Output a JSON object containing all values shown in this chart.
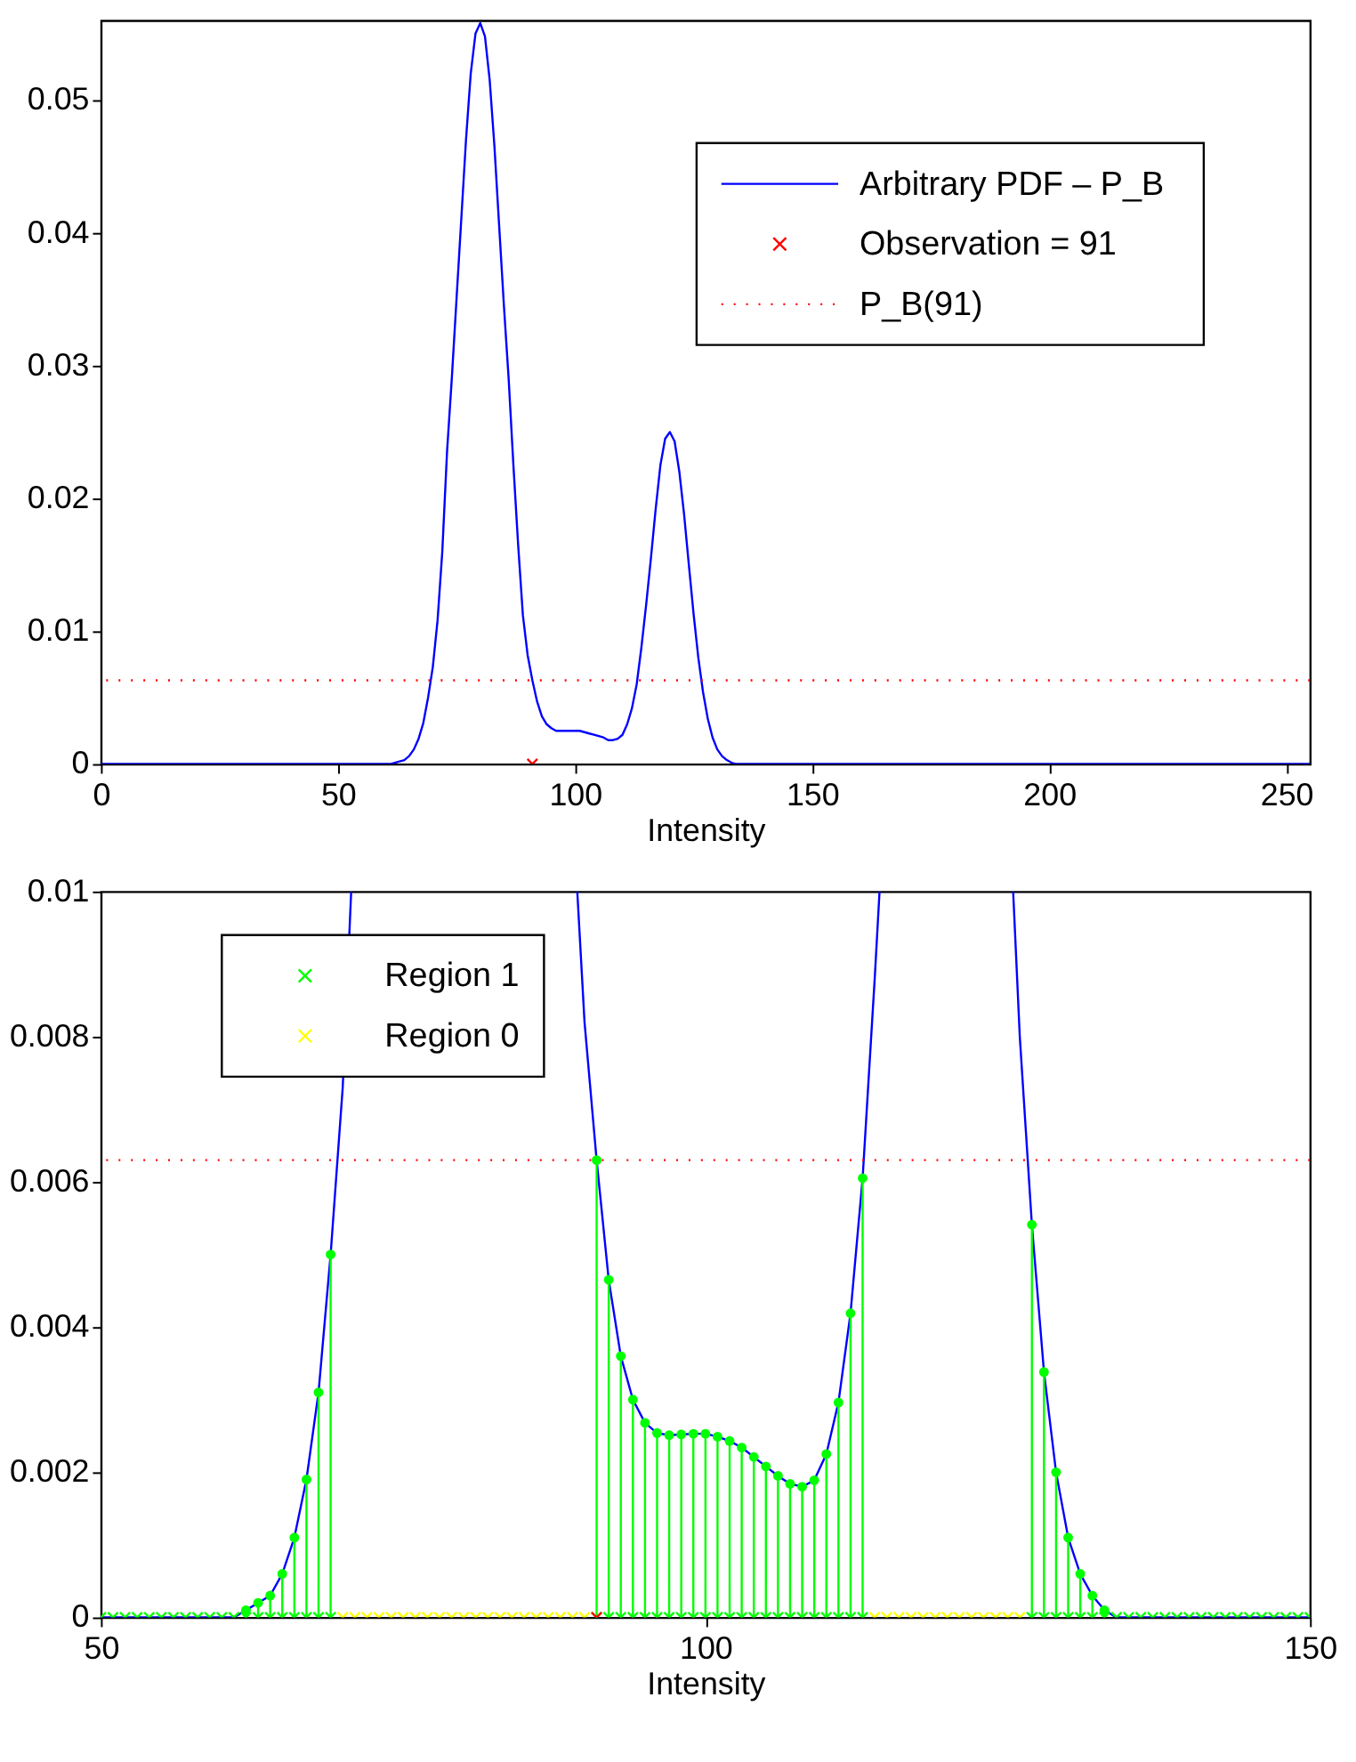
{
  "chart_data": [
    {
      "type": "line",
      "xlabel": "Intensity",
      "xlim": [
        0,
        255
      ],
      "xticks": [
        0,
        50,
        100,
        150,
        200,
        250
      ],
      "ylim": [
        0,
        0.056
      ],
      "yticks": [
        0,
        0.01,
        0.02,
        0.03,
        0.04,
        0.05
      ],
      "grid": false,
      "legend": "top right",
      "series": [
        {
          "name": "Arbitrary PDF – P_B",
          "color": "#0000ff",
          "line_style": "solid",
          "marker": "none",
          "x": [
            0,
            55,
            60,
            61,
            62,
            63,
            64,
            65,
            66,
            67,
            68,
            69,
            70,
            71,
            72,
            73,
            74,
            75,
            76,
            77,
            78,
            79,
            80,
            81,
            82,
            83,
            84,
            85,
            86,
            87,
            88,
            89,
            90,
            91,
            92,
            93,
            94,
            95,
            96,
            97,
            98,
            99,
            100,
            101,
            102,
            103,
            104,
            105,
            106,
            107,
            108,
            109,
            110,
            111,
            112,
            113,
            114,
            115,
            116,
            117,
            118,
            119,
            120,
            121,
            122,
            123,
            124,
            125,
            126,
            127,
            128,
            129,
            130,
            131,
            132,
            133,
            134,
            135,
            140,
            255
          ],
          "values": [
            0,
            0,
            0,
            0,
            0.0001,
            0.0002,
            0.0003,
            0.0006,
            0.0011,
            0.0019,
            0.0031,
            0.005,
            0.0073,
            0.0108,
            0.016,
            0.0235,
            0.029,
            0.035,
            0.041,
            0.047,
            0.052,
            0.055,
            0.0558,
            0.0548,
            0.0515,
            0.0465,
            0.0405,
            0.0345,
            0.029,
            0.0225,
            0.0165,
            0.0112,
            0.0082,
            0.0063,
            0.0047,
            0.0036,
            0.003,
            0.0027,
            0.0025,
            0.0025,
            0.0025,
            0.0025,
            0.0025,
            0.0025,
            0.0024,
            0.0023,
            0.0022,
            0.0021,
            0.002,
            0.0018,
            0.0018,
            0.0019,
            0.0022,
            0.003,
            0.0042,
            0.006,
            0.0088,
            0.012,
            0.0155,
            0.0192,
            0.0225,
            0.0245,
            0.025,
            0.0243,
            0.022,
            0.0188,
            0.015,
            0.0113,
            0.008,
            0.0054,
            0.0034,
            0.002,
            0.0011,
            0.0006,
            0.0003,
            0.0001,
            0,
            0,
            0,
            0
          ]
        },
        {
          "name": "Observation = 91",
          "type": "scatter",
          "color": "#ff0000",
          "marker": "cross",
          "x": [
            91
          ],
          "values": [
            0
          ]
        }
      ],
      "ref_lines": [
        {
          "axis": "y",
          "value": 0.0063,
          "label": "P_B(91)",
          "color": "#ff0000",
          "line_style": "dotted"
        }
      ]
    },
    {
      "type": "line",
      "xlabel": "Intensity",
      "xlim": [
        50,
        150
      ],
      "xticks": [
        50,
        100,
        150
      ],
      "ylim": [
        0,
        0.01
      ],
      "yticks": [
        0,
        0.002,
        0.004,
        0.006,
        0.008,
        0.01
      ],
      "grid": false,
      "legend": "top left",
      "series": [
        {
          "color": "#0000ff",
          "line_style": "solid",
          "marker": "none",
          "x": [
            50,
            55,
            60,
            61,
            62,
            63,
            64,
            65,
            66,
            67,
            68,
            69,
            70,
            70.7,
            80,
            89.4,
            90,
            91,
            92,
            93,
            94,
            95,
            96,
            97,
            98,
            99,
            100,
            101,
            102,
            103,
            104,
            105,
            106,
            107,
            108,
            109,
            110,
            111,
            112,
            113,
            114,
            114.4,
            120,
            125.45,
            126,
            127,
            128,
            129,
            130,
            131,
            132,
            133,
            134,
            135,
            140,
            150
          ],
          "values": [
            0,
            0,
            0,
            0,
            0.0001,
            0.0002,
            0.0003,
            0.0006,
            0.0011,
            0.0019,
            0.0031,
            0.005,
            0.0073,
            0.01,
            null,
            0.01,
            0.0082,
            0.0063,
            0.00465,
            0.0036,
            0.003,
            0.00268,
            0.00254,
            0.00251,
            0.00252,
            0.00253,
            0.00253,
            0.00249,
            0.00243,
            0.00234,
            0.00221,
            0.00208,
            0.00195,
            0.00184,
            0.0018,
            0.00189,
            0.00225,
            0.00296,
            0.00419,
            0.00605,
            0.0088,
            0.01,
            null,
            0.01,
            0.008,
            0.00541,
            0.00338,
            0.002,
            0.0011,
            0.0006,
            0.0003,
            0.0001,
            0,
            0,
            0,
            0
          ]
        },
        {
          "type": "lollipop",
          "color": "#00ff00",
          "marker": "circle",
          "x": [
            62,
            63,
            64,
            65,
            66,
            67,
            68,
            69,
            91,
            92,
            93,
            94,
            95,
            96,
            97,
            98,
            99,
            100,
            101,
            102,
            103,
            104,
            105,
            106,
            107,
            108,
            109,
            110,
            111,
            112,
            113,
            127,
            128,
            129,
            130,
            131,
            132,
            133
          ],
          "values": [
            0.0001,
            0.0002,
            0.0003,
            0.0006,
            0.0011,
            0.0019,
            0.0031,
            0.005,
            0.0063,
            0.00465,
            0.0036,
            0.003,
            0.00268,
            0.00254,
            0.00251,
            0.00252,
            0.00253,
            0.00253,
            0.00249,
            0.00243,
            0.00234,
            0.00221,
            0.00208,
            0.00195,
            0.00184,
            0.0018,
            0.00189,
            0.00225,
            0.00296,
            0.00419,
            0.00605,
            0.00541,
            0.00338,
            0.002,
            0.0011,
            0.0006,
            0.0003,
            0.0001
          ]
        },
        {
          "name": "Region 1",
          "type": "scatter",
          "color": "#00ff00",
          "marker": "cross",
          "x": [
            50,
            51,
            52,
            53,
            54,
            55,
            56,
            57,
            58,
            59,
            60,
            61,
            62,
            63,
            64,
            65,
            66,
            67,
            68,
            69,
            91,
            92,
            93,
            94,
            95,
            96,
            97,
            98,
            99,
            100,
            101,
            102,
            103,
            104,
            105,
            106,
            107,
            108,
            109,
            110,
            111,
            112,
            113,
            127,
            128,
            129,
            130,
            131,
            132,
            133,
            134,
            135,
            136,
            137,
            138,
            139,
            140,
            141,
            142,
            143,
            144,
            145,
            146,
            147,
            148,
            149,
            150
          ],
          "values": [
            0,
            0,
            0,
            0,
            0,
            0,
            0,
            0,
            0,
            0,
            0,
            0,
            0,
            0,
            0,
            0,
            0,
            0,
            0,
            0,
            0,
            0,
            0,
            0,
            0,
            0,
            0,
            0,
            0,
            0,
            0,
            0,
            0,
            0,
            0,
            0,
            0,
            0,
            0,
            0,
            0,
            0,
            0,
            0,
            0,
            0,
            0,
            0,
            0,
            0,
            0,
            0,
            0,
            0,
            0,
            0,
            0,
            0,
            0,
            0,
            0,
            0,
            0,
            0,
            0,
            0,
            0
          ]
        },
        {
          "name": "Region 0",
          "type": "scatter",
          "color": "#ffff00",
          "marker": "cross",
          "x": [
            70,
            71,
            72,
            73,
            74,
            75,
            76,
            77,
            78,
            79,
            80,
            81,
            82,
            83,
            84,
            85,
            86,
            87,
            88,
            89,
            90,
            114,
            115,
            116,
            117,
            118,
            119,
            120,
            121,
            122,
            123,
            124,
            125,
            126
          ],
          "values": [
            0,
            0,
            0,
            0,
            0,
            0,
            0,
            0,
            0,
            0,
            0,
            0,
            0,
            0,
            0,
            0,
            0,
            0,
            0,
            0,
            0,
            0,
            0,
            0,
            0,
            0,
            0,
            0,
            0,
            0,
            0,
            0,
            0,
            0
          ]
        },
        {
          "type": "scatter",
          "color": "#ff0000",
          "marker": "cross",
          "x": [
            91
          ],
          "values": [
            0
          ]
        }
      ],
      "ref_lines": [
        {
          "axis": "y",
          "value": 0.0063,
          "color": "#ff0000",
          "line_style": "dotted"
        }
      ]
    }
  ]
}
